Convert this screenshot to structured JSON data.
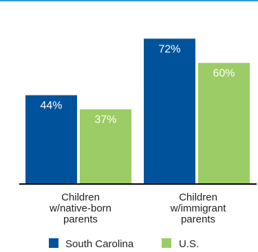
{
  "chart_data": {
    "type": "bar",
    "categories": [
      [
        "Children",
        "w/native-born",
        "parents"
      ],
      [
        "Children",
        "w/immigrant",
        "parents"
      ]
    ],
    "series": [
      {
        "name": "South Carolina",
        "values": [
          44,
          72
        ],
        "labels": [
          "44%",
          "72%"
        ],
        "color": "#00539b"
      },
      {
        "name": "U.S.",
        "values": [
          37,
          60
        ],
        "labels": [
          "37%",
          "60%"
        ],
        "color": "#9ccc65"
      }
    ],
    "ylim": [
      0,
      100
    ],
    "xlabel": "",
    "ylabel": "",
    "grid": false,
    "legend_position": "bottom"
  }
}
